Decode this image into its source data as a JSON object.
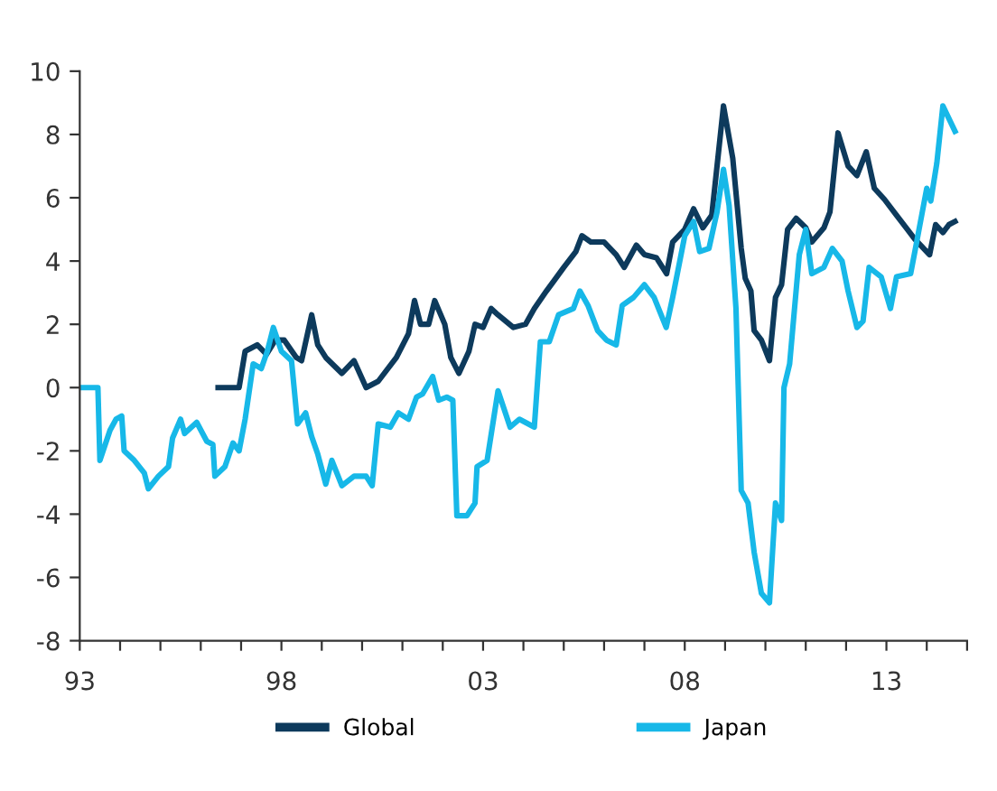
{
  "chart_data": {
    "type": "line",
    "xlim": [
      1993,
      2015
    ],
    "xticks": [
      {
        "value": 1993,
        "label": "93"
      },
      {
        "value": 1994,
        "label": null
      },
      {
        "value": 1995,
        "label": null
      },
      {
        "value": 1996,
        "label": null
      },
      {
        "value": 1997,
        "label": null
      },
      {
        "value": 1998,
        "label": "98"
      },
      {
        "value": 1999,
        "label": null
      },
      {
        "value": 2000,
        "label": null
      },
      {
        "value": 2001,
        "label": null
      },
      {
        "value": 2002,
        "label": null
      },
      {
        "value": 2003,
        "label": "03"
      },
      {
        "value": 2004,
        "label": null
      },
      {
        "value": 2005,
        "label": null
      },
      {
        "value": 2006,
        "label": null
      },
      {
        "value": 2007,
        "label": null
      },
      {
        "value": 2008,
        "label": "08"
      },
      {
        "value": 2009,
        "label": null
      },
      {
        "value": 2010,
        "label": null
      },
      {
        "value": 2011,
        "label": null
      },
      {
        "value": 2012,
        "label": null
      },
      {
        "value": 2013,
        "label": "13"
      },
      {
        "value": 2014,
        "label": null
      },
      {
        "value": 2015,
        "label": null
      }
    ],
    "ylim": [
      -8,
      10
    ],
    "yticks": [
      -8,
      -6,
      -4,
      -2,
      0,
      2,
      4,
      6,
      8,
      10
    ],
    "grid": false,
    "legend": "bottom",
    "marker": "none",
    "line_style": "solid",
    "series": [
      {
        "name": "Global",
        "color": "#0d3a5c",
        "x": [
          1996.43,
          1996.95,
          1997.1,
          1997.4,
          1997.63,
          1997.85,
          1998.07,
          1998.37,
          1998.5,
          1998.75,
          1998.9,
          1999.1,
          1999.5,
          1999.8,
          2000.1,
          2000.4,
          2000.85,
          2001.15,
          2001.3,
          2001.45,
          2001.65,
          2001.8,
          2002.05,
          2002.2,
          2002.4,
          2002.65,
          2002.8,
          2003.0,
          2003.2,
          2003.37,
          2003.75,
          2004.05,
          2004.27,
          2004.57,
          2004.8,
          2005.0,
          2005.3,
          2005.45,
          2005.67,
          2006.0,
          2006.3,
          2006.5,
          2006.8,
          2007.0,
          2007.3,
          2007.55,
          2007.7,
          2008.0,
          2008.22,
          2008.45,
          2008.67,
          2008.96,
          2009.19,
          2009.4,
          2009.5,
          2009.64,
          2009.72,
          2009.9,
          2010.1,
          2010.25,
          2010.4,
          2010.55,
          2010.76,
          2011.0,
          2011.15,
          2011.45,
          2011.6,
          2011.8,
          2012.05,
          2012.27,
          2012.5,
          2012.7,
          2012.95,
          2013.25,
          2013.7,
          2014.07,
          2014.22,
          2014.4,
          2014.55,
          2014.7
        ],
        "values": [
          0,
          0,
          1.15,
          1.35,
          1.05,
          1.5,
          1.5,
          0.95,
          0.85,
          2.3,
          1.35,
          0.95,
          0.45,
          0.85,
          0,
          0.2,
          0.95,
          1.7,
          2.75,
          2.0,
          2.0,
          2.75,
          2.0,
          0.95,
          0.45,
          1.15,
          2.0,
          1.9,
          2.5,
          2.3,
          1.9,
          2.0,
          2.5,
          3.05,
          3.45,
          3.8,
          4.3,
          4.8,
          4.6,
          4.6,
          4.2,
          3.8,
          4.5,
          4.2,
          4.1,
          3.6,
          4.6,
          5.0,
          5.65,
          5.05,
          5.45,
          8.9,
          7.25,
          4.4,
          3.45,
          3.05,
          1.8,
          1.5,
          0.85,
          2.85,
          3.25,
          5.0,
          5.35,
          5.05,
          4.6,
          5.05,
          5.55,
          8.05,
          7.0,
          6.7,
          7.45,
          6.3,
          5.95,
          5.45,
          4.7,
          4.2,
          5.15,
          4.9,
          5.15,
          5.25
        ]
      },
      {
        "name": "Japan",
        "color": "#17b8e8",
        "x": [
          1993.0,
          1993.45,
          1993.5,
          1993.75,
          1993.9,
          1994.04,
          1994.1,
          1994.35,
          1994.6,
          1994.7,
          1994.95,
          1995.2,
          1995.3,
          1995.5,
          1995.6,
          1995.9,
          1996.15,
          1996.3,
          1996.35,
          1996.6,
          1996.8,
          1996.95,
          1997.1,
          1997.3,
          1997.5,
          1997.65,
          1997.8,
          1998.0,
          1998.25,
          1998.4,
          1998.6,
          1998.75,
          1998.9,
          1999.1,
          1999.25,
          1999.5,
          1999.8,
          2000.1,
          2000.25,
          2000.4,
          2000.7,
          2000.9,
          2001.15,
          2001.35,
          2001.5,
          2001.75,
          2001.9,
          2002.1,
          2002.25,
          2002.35,
          2002.6,
          2002.8,
          2002.85,
          2003.1,
          2003.37,
          2003.67,
          2003.9,
          2004.27,
          2004.42,
          2004.64,
          2004.87,
          2005.24,
          2005.4,
          2005.6,
          2005.84,
          2006.06,
          2006.3,
          2006.45,
          2006.73,
          2007.0,
          2007.24,
          2007.54,
          2007.7,
          2008.0,
          2008.22,
          2008.37,
          2008.6,
          2008.8,
          2008.96,
          2009.1,
          2009.27,
          2009.4,
          2009.57,
          2009.72,
          2009.9,
          2010.1,
          2010.25,
          2010.4,
          2010.46,
          2010.6,
          2010.84,
          2011.0,
          2011.15,
          2011.45,
          2011.66,
          2011.9,
          2012.05,
          2012.27,
          2012.42,
          2012.57,
          2012.87,
          2013.1,
          2013.25,
          2013.6,
          2013.75,
          2014.0,
          2014.1,
          2014.25,
          2014.4,
          2014.7
        ],
        "values": [
          0,
          0,
          -2.3,
          -1.35,
          -1.0,
          -0.9,
          -2.0,
          -2.3,
          -2.7,
          -3.2,
          -2.8,
          -2.5,
          -1.6,
          -1.0,
          -1.45,
          -1.1,
          -1.7,
          -1.8,
          -2.8,
          -2.5,
          -1.75,
          -2.0,
          -1.0,
          0.75,
          0.6,
          1.15,
          1.9,
          1.15,
          0.85,
          -1.15,
          -0.8,
          -1.55,
          -2.1,
          -3.05,
          -2.3,
          -3.1,
          -2.8,
          -2.8,
          -3.1,
          -1.15,
          -1.25,
          -0.8,
          -1.0,
          -0.3,
          -0.2,
          0.35,
          -0.4,
          -0.3,
          -0.4,
          -4.05,
          -4.05,
          -3.65,
          -2.5,
          -2.3,
          -0.1,
          -1.25,
          -1.0,
          -1.25,
          1.45,
          1.45,
          2.3,
          2.5,
          3.05,
          2.6,
          1.8,
          1.5,
          1.35,
          2.6,
          2.85,
          3.25,
          2.85,
          1.9,
          2.85,
          4.8,
          5.25,
          4.3,
          4.4,
          5.55,
          6.9,
          5.75,
          2.5,
          -3.25,
          -3.65,
          -5.2,
          -6.5,
          -6.8,
          -3.65,
          -4.2,
          0,
          0.75,
          4.2,
          5.0,
          3.6,
          3.8,
          4.4,
          4.0,
          3.05,
          1.9,
          2.1,
          3.8,
          3.5,
          2.5,
          3.5,
          3.6,
          4.6,
          6.3,
          5.9,
          7.1,
          8.9,
          8.1
        ]
      }
    ]
  }
}
